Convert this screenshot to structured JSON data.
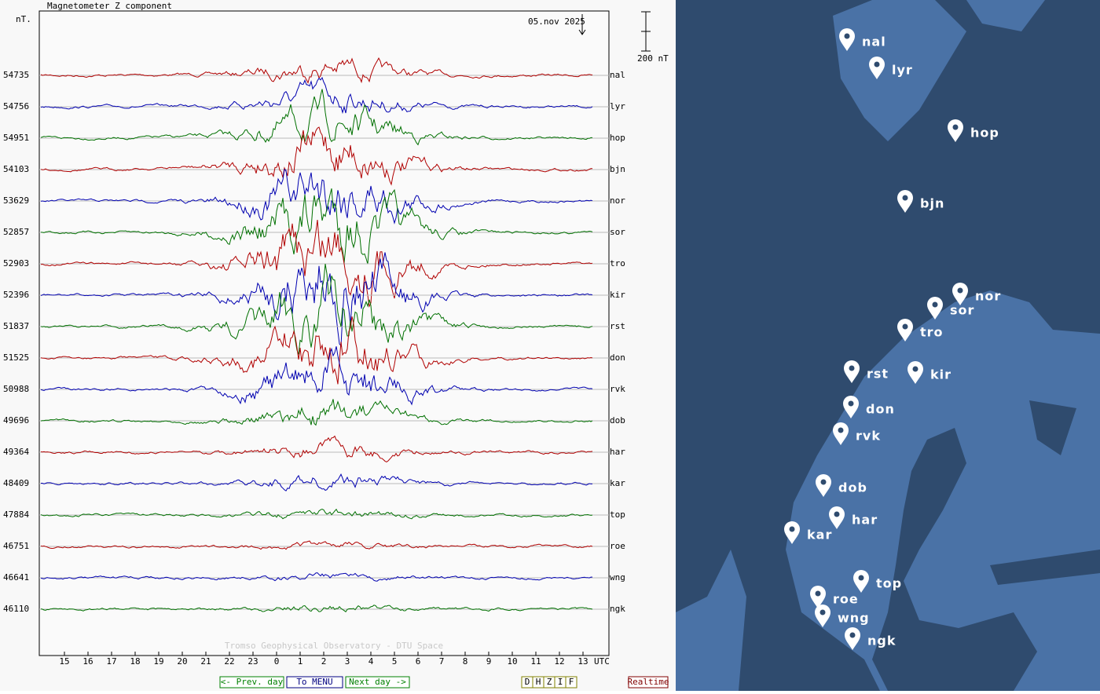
{
  "header": {
    "title": "Magnetometer Z component",
    "unit": "nT.",
    "date": "05.nov 2025",
    "scale": "200 nT"
  },
  "stations": [
    {
      "code": "nal",
      "baseline": 54735,
      "color": "#b00000"
    },
    {
      "code": "lyr",
      "baseline": 54756,
      "color": "#0000b0"
    },
    {
      "code": "hop",
      "baseline": 54951,
      "color": "#007000"
    },
    {
      "code": "bjn",
      "baseline": 54103,
      "color": "#b00000"
    },
    {
      "code": "nor",
      "baseline": 53629,
      "color": "#0000b0"
    },
    {
      "code": "sor",
      "baseline": 52857,
      "color": "#007000"
    },
    {
      "code": "tro",
      "baseline": 52903,
      "color": "#b00000"
    },
    {
      "code": "kir",
      "baseline": 52396,
      "color": "#0000b0"
    },
    {
      "code": "rst",
      "baseline": 51837,
      "color": "#007000"
    },
    {
      "code": "don",
      "baseline": 51525,
      "color": "#b00000"
    },
    {
      "code": "rvk",
      "baseline": 50988,
      "color": "#0000b0"
    },
    {
      "code": "dob",
      "baseline": 49696,
      "color": "#007000"
    },
    {
      "code": "har",
      "baseline": 49364,
      "color": "#b00000"
    },
    {
      "code": "kar",
      "baseline": 48409,
      "color": "#0000b0"
    },
    {
      "code": "top",
      "baseline": 47884,
      "color": "#007000"
    },
    {
      "code": "roe",
      "baseline": 46751,
      "color": "#b00000"
    },
    {
      "code": "wng",
      "baseline": 46641,
      "color": "#0000b0"
    },
    {
      "code": "ngk",
      "baseline": 46110,
      "color": "#007000"
    }
  ],
  "x_axis": {
    "ticks": [
      15,
      16,
      17,
      18,
      19,
      20,
      21,
      22,
      23,
      0,
      1,
      2,
      3,
      4,
      5,
      6,
      7,
      8,
      9,
      10,
      11,
      12,
      13
    ],
    "unit": "UTC"
  },
  "watermark": "Tromso Geophysical Observatory - DTU Space",
  "buttons": {
    "prev": "<- Prev. day",
    "menu": "To MENU",
    "next": "Next day ->",
    "components": [
      "D",
      "H",
      "Z",
      "I",
      "F"
    ],
    "realtime": "Realtime"
  }
}
